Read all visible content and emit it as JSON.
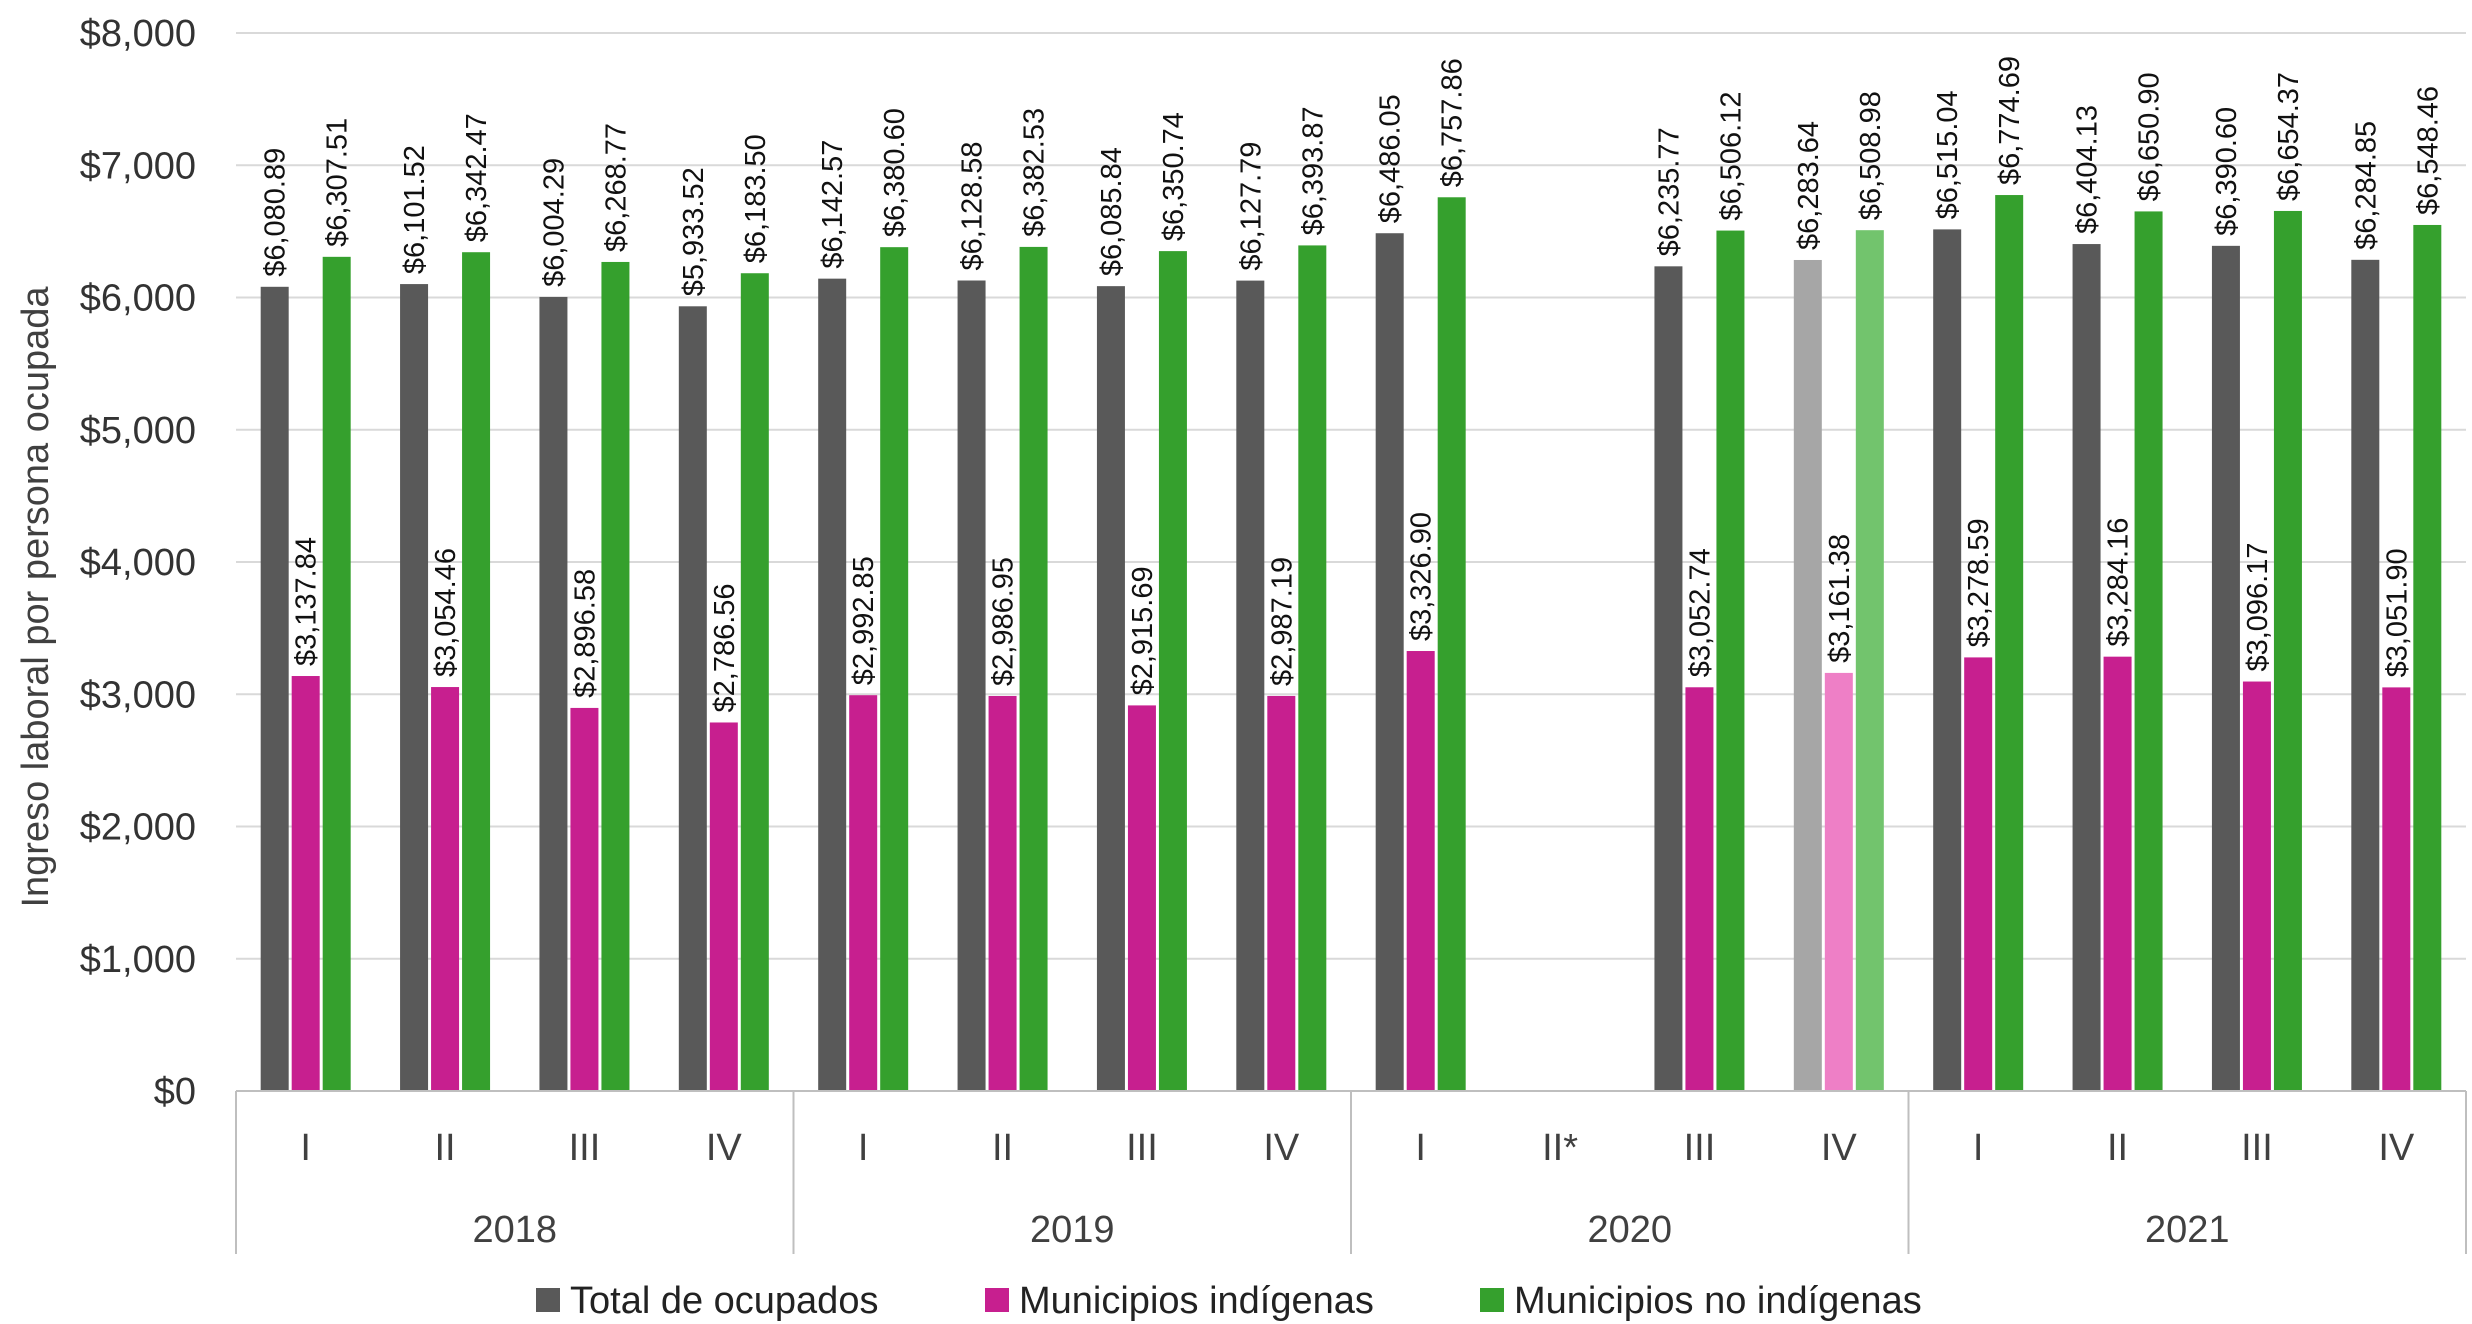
{
  "chart_data": {
    "type": "bar",
    "ylabel": "Ingreso laboral por persona ocupada",
    "ylim": [
      0,
      8000
    ],
    "yticks": [
      0,
      1000,
      2000,
      3000,
      4000,
      5000,
      6000,
      7000,
      8000
    ],
    "ytick_labels": [
      "$0",
      "$1,000",
      "$2,000",
      "$3,000",
      "$4,000",
      "$5,000",
      "$6,000",
      "$7,000",
      "$8,000"
    ],
    "grid": true,
    "legend_position": "bottom",
    "groups": [
      {
        "label": "2018",
        "quarters": [
          "I",
          "II",
          "III",
          "IV"
        ]
      },
      {
        "label": "2019",
        "quarters": [
          "I",
          "II",
          "III",
          "IV"
        ]
      },
      {
        "label": "2020",
        "quarters": [
          "I",
          "II*",
          "III",
          "IV"
        ]
      },
      {
        "label": "2021",
        "quarters": [
          "I",
          "II",
          "III",
          "IV"
        ]
      }
    ],
    "series": [
      {
        "name": "Total de ocupados",
        "color": "#595959",
        "light_color": "#a6a6a6",
        "values": [
          6080.89,
          6101.52,
          6004.29,
          5933.52,
          6142.57,
          6128.58,
          6085.84,
          6127.79,
          6486.05,
          null,
          6235.77,
          6283.64,
          6515.04,
          6404.13,
          6390.6,
          6284.85
        ],
        "labels": [
          "$6,080.89",
          "$6,101.52",
          "$6,004.29",
          "$5,933.52",
          "$6,142.57",
          "$6,128.58",
          "$6,085.84",
          "$6,127.79",
          "$6,486.05",
          "",
          "$6,235.77",
          "$6,283.64",
          "$6,515.04",
          "$6,404.13",
          "$6,390.60",
          "$6,284.85"
        ]
      },
      {
        "name": "Municipios indígenas",
        "color": "#c71f8f",
        "light_color": "#ee7fc6",
        "values": [
          3137.84,
          3054.46,
          2896.58,
          2786.56,
          2992.85,
          2986.95,
          2915.69,
          2987.19,
          3326.9,
          null,
          3052.74,
          3161.38,
          3278.59,
          3284.16,
          3096.17,
          3051.9
        ],
        "labels": [
          "$3,137.84",
          "$3,054.46",
          "$2,896.58",
          "$2,786.56",
          "$2,992.85",
          "$2,986.95",
          "$2,915.69",
          "$2,987.19",
          "$3,326.90",
          "",
          "$3,052.74",
          "$3,161.38",
          "$3,278.59",
          "$3,284.16",
          "$3,096.17",
          "$3,051.90"
        ]
      },
      {
        "name": "Municipios no indígenas",
        "color": "#35a02d",
        "light_color": "#72c46d",
        "values": [
          6307.51,
          6342.47,
          6268.77,
          6183.5,
          6380.6,
          6382.53,
          6350.74,
          6393.87,
          6757.86,
          null,
          6506.12,
          6508.98,
          6774.69,
          6650.9,
          6654.37,
          6548.46
        ],
        "labels": [
          "$6,307.51",
          "$6,342.47",
          "$6,268.77",
          "$6,183.50",
          "$6,380.60",
          "$6,382.53",
          "$6,350.74",
          "$6,393.87",
          "$6,757.86",
          "",
          "$6,506.12",
          "$6,508.98",
          "$6,774.69",
          "$6,650.90",
          "$6,654.37",
          "$6,548.46"
        ]
      }
    ],
    "highlighted_lighter": [
      "2020 IV"
    ]
  }
}
